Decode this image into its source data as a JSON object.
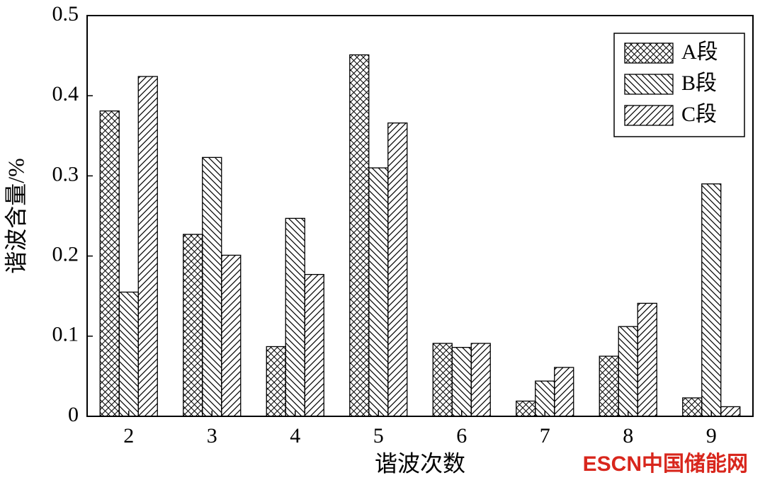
{
  "chart_data": {
    "type": "bar",
    "y_label": "谐波含量/%",
    "x_label": "谐波次数",
    "categories": [
      "2",
      "3",
      "4",
      "5",
      "6",
      "7",
      "8",
      "9"
    ],
    "series": [
      {
        "name": "A段",
        "color": "#000000",
        "hatch": "cross",
        "values": [
          0.381,
          0.227,
          0.087,
          0.451,
          0.091,
          0.019,
          0.075,
          0.023
        ]
      },
      {
        "name": "B段",
        "color": "#000000",
        "hatch": "backslash",
        "values": [
          0.155,
          0.323,
          0.247,
          0.31,
          0.086,
          0.044,
          0.112,
          0.29
        ]
      },
      {
        "name": "C段",
        "color": "#000000",
        "hatch": "slash",
        "values": [
          0.424,
          0.201,
          0.177,
          0.366,
          0.091,
          0.061,
          0.141,
          0.012
        ]
      }
    ],
    "ylim": [
      0,
      0.5
    ],
    "yticks": [
      0,
      0.1,
      0.2,
      0.3,
      0.4,
      0.5
    ],
    "legend_position": "upper right",
    "watermark": "ESCN中国储能网"
  }
}
